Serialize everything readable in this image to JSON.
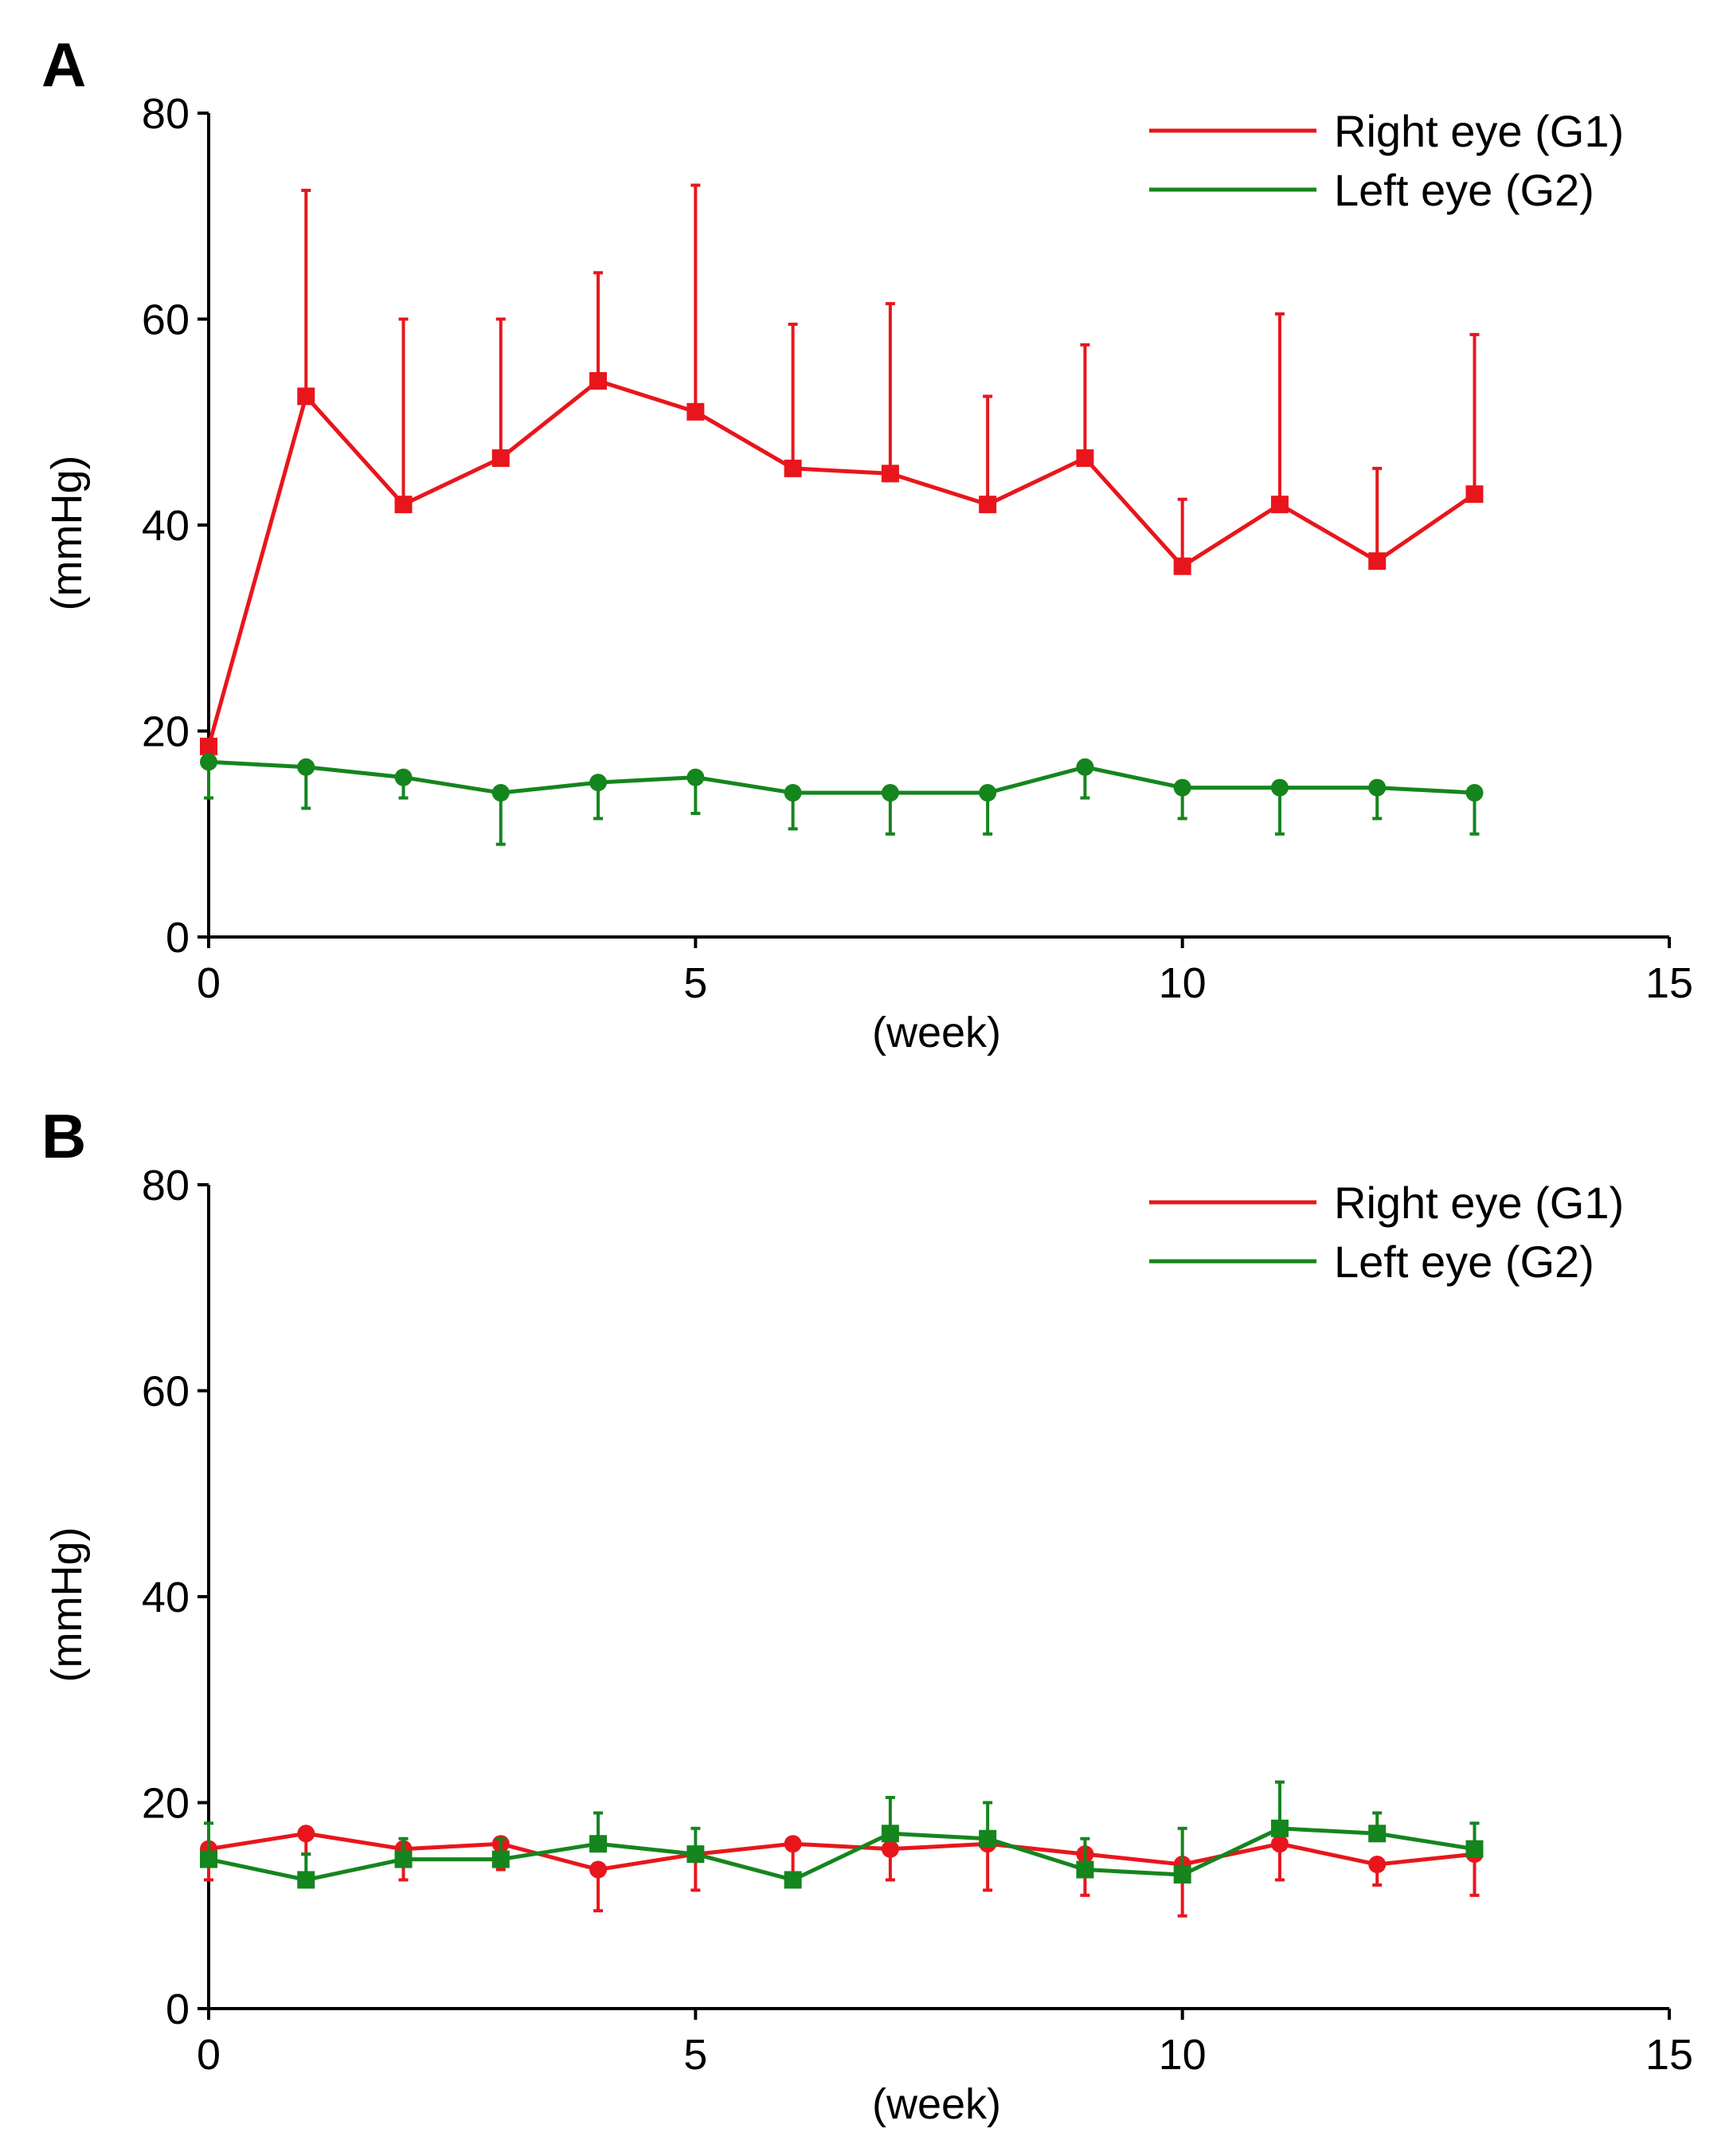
{
  "chart_data": [
    {
      "type": "line",
      "panel_label": "A",
      "xlabel": "(week)",
      "ylabel": "(mmHg)",
      "xlim": [
        0,
        15
      ],
      "ylim": [
        0,
        80
      ],
      "x_ticks": [
        "0",
        "5",
        "10",
        "15"
      ],
      "y_ticks": [
        "0",
        "20",
        "40",
        "60",
        "80"
      ],
      "legend_position": "top-right",
      "x": [
        0,
        1,
        2,
        3,
        4,
        5,
        6,
        7,
        8,
        9,
        10,
        11,
        12,
        13
      ],
      "series": [
        {
          "name": "Right eye (G1)",
          "color": "#e8161c",
          "marker": "square",
          "values": [
            18.5,
            52.5,
            42,
            46.5,
            54,
            51,
            45.5,
            45,
            42,
            46.5,
            36,
            42,
            36.5,
            43
          ],
          "error_plus": [
            0,
            20,
            18,
            13.5,
            10.5,
            22,
            14,
            16.5,
            10.5,
            11,
            6.5,
            18.5,
            9,
            15.5
          ],
          "error_minus": [
            0,
            0,
            0,
            0,
            0,
            0,
            0,
            0,
            0,
            0,
            0,
            0,
            0,
            0
          ]
        },
        {
          "name": "Left eye (G2)",
          "color": "#15851e",
          "marker": "circle",
          "values": [
            17,
            16.5,
            15.5,
            14,
            15,
            15.5,
            14,
            14,
            14,
            16.5,
            14.5,
            14.5,
            14.5,
            14
          ],
          "error_plus": [
            0,
            0,
            0,
            0,
            0,
            0,
            0,
            0,
            0,
            0,
            0,
            0,
            0,
            0
          ],
          "error_minus": [
            3.5,
            4,
            2,
            5,
            3.5,
            3.5,
            3.5,
            4,
            4,
            3,
            3,
            4.5,
            3,
            4
          ]
        }
      ]
    },
    {
      "type": "line",
      "panel_label": "B",
      "xlabel": "(week)",
      "ylabel": "(mmHg)",
      "xlim": [
        0,
        15
      ],
      "ylim": [
        0,
        80
      ],
      "x_ticks": [
        "0",
        "5",
        "10",
        "15"
      ],
      "y_ticks": [
        "0",
        "20",
        "40",
        "60",
        "80"
      ],
      "legend_position": "top-right",
      "x": [
        0,
        1,
        2,
        3,
        4,
        5,
        6,
        7,
        8,
        9,
        10,
        11,
        12,
        13
      ],
      "series": [
        {
          "name": "Right eye (G1)",
          "color": "#e8161c",
          "marker": "circle",
          "values": [
            15.5,
            17,
            15.5,
            16,
            13.5,
            15,
            16,
            15.5,
            16,
            15,
            14,
            16,
            14,
            15
          ],
          "error_plus": [
            0,
            0,
            0,
            0,
            0,
            0,
            0,
            0,
            0,
            0,
            0,
            0,
            0,
            0
          ],
          "error_minus": [
            3,
            2,
            3,
            2.5,
            4,
            3.5,
            3,
            3,
            4.5,
            4,
            5,
            3.5,
            2,
            4
          ]
        },
        {
          "name": "Left eye (G2)",
          "color": "#15851e",
          "marker": "square",
          "values": [
            14.5,
            12.5,
            14.5,
            14.5,
            16,
            15,
            12.5,
            17,
            16.5,
            13.5,
            13,
            17.5,
            17,
            15.5
          ],
          "error_plus": [
            3.5,
            2.5,
            2,
            2,
            3,
            2.5,
            0,
            3.5,
            3.5,
            3,
            4.5,
            4.5,
            2,
            2.5
          ],
          "error_minus": [
            0,
            0,
            0,
            0,
            0,
            0,
            0,
            0,
            0,
            0,
            0,
            0,
            0,
            0
          ]
        }
      ]
    }
  ]
}
